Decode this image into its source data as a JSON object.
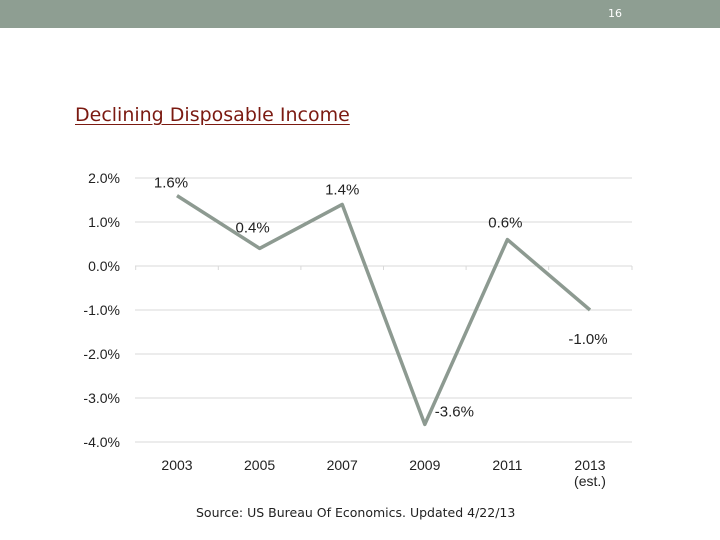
{
  "slide": {
    "page_number": "16",
    "title": "Declining Disposable Income",
    "source": "Source:  US Bureau Of Economics.  Updated 4/22/13"
  },
  "colors": {
    "topbar": "#8e9e92",
    "title": "#7b1a11",
    "line": "#8d9a91",
    "grid": "#d9d9d9"
  },
  "chart_data": {
    "type": "line",
    "title": "",
    "xlabel": "",
    "ylabel": "",
    "categories": [
      "2003",
      "2005",
      "2007",
      "2009",
      "2011",
      "2013\n(est.)"
    ],
    "series": [
      {
        "values": [
          1.6,
          0.4,
          1.4,
          -3.6,
          0.6,
          -1.0
        ]
      }
    ],
    "data_labels": [
      "1.6%",
      "0.4%",
      "1.4%",
      "-3.6%",
      "0.6%",
      "-1.0%"
    ],
    "y_ticks": [
      2.0,
      1.0,
      0.0,
      -1.0,
      -2.0,
      -3.0,
      -4.0
    ],
    "y_tick_labels": [
      "2.0%",
      "1.0%",
      "0.0%",
      "-1.0%",
      "-2.0%",
      "-3.0%",
      "-4.0%"
    ],
    "ylim": [
      -4.0,
      2.0
    ],
    "grid": true,
    "legend": "none"
  }
}
